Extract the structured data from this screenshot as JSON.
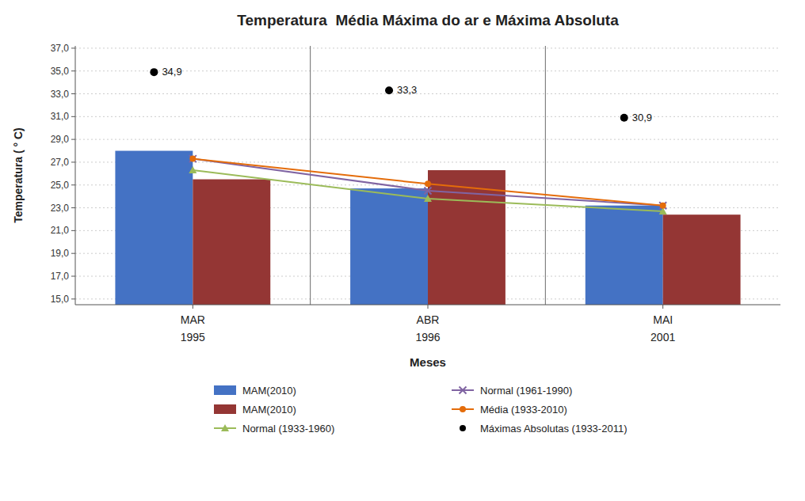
{
  "chart_data": {
    "type": "bar",
    "title": "Temperatura  Média Máxima do ar e Máxima Absoluta",
    "xlabel": "Meses",
    "ylabel": "Temperatura ( ° C)",
    "categories": [
      "MAR",
      "ABR",
      "MAI"
    ],
    "annotations": [
      "1995",
      "1996",
      "2001"
    ],
    "series": [
      {
        "name": "MAM(2010)",
        "type": "bar",
        "color": "#4472C4",
        "values": [
          28.0,
          24.7,
          23.2
        ]
      },
      {
        "name": "MAM(2010)",
        "type": "bar",
        "color": "#943634",
        "values": [
          25.5,
          26.3,
          22.4
        ]
      },
      {
        "name": "Normal (1933-1960)",
        "type": "line",
        "color": "#9BBB59",
        "marker": "triangle",
        "values": [
          26.3,
          23.8,
          22.7
        ]
      },
      {
        "name": "Normal (1961-1990)",
        "type": "line",
        "color": "#8064A2",
        "marker": "x",
        "values": [
          27.3,
          24.5,
          23.2
        ]
      },
      {
        "name": "Média (1933-2010)",
        "type": "line",
        "color": "#E46C0A",
        "marker": "circle",
        "values": [
          27.3,
          25.1,
          23.2
        ]
      },
      {
        "name": "Máximas Absolutas (1933-2011)",
        "type": "scatter",
        "color": "#000000",
        "marker": "circle",
        "data_labels": true,
        "values": [
          34.9,
          33.3,
          30.9
        ],
        "value_labels": [
          "34,9",
          "33,3",
          "30,9"
        ]
      }
    ],
    "ylim": [
      14.5,
      37.2
    ],
    "yticks": [
      {
        "value": 15.0,
        "label": "15,0"
      },
      {
        "value": 17.0,
        "label": "17,0"
      },
      {
        "value": 19.0,
        "label": "19,0"
      },
      {
        "value": 21.0,
        "label": "21,0"
      },
      {
        "value": 23.0,
        "label": "23,0"
      },
      {
        "value": 25.0,
        "label": "25,0"
      },
      {
        "value": 27.0,
        "label": "27,0"
      },
      {
        "value": 29.0,
        "label": "29,0"
      },
      {
        "value": 31.0,
        "label": "31,0"
      },
      {
        "value": 33.0,
        "label": "33,0"
      },
      {
        "value": 35.0,
        "label": "35,0"
      },
      {
        "value": 37.0,
        "label": "37,0"
      }
    ],
    "grid": true,
    "legend": "bottom"
  }
}
